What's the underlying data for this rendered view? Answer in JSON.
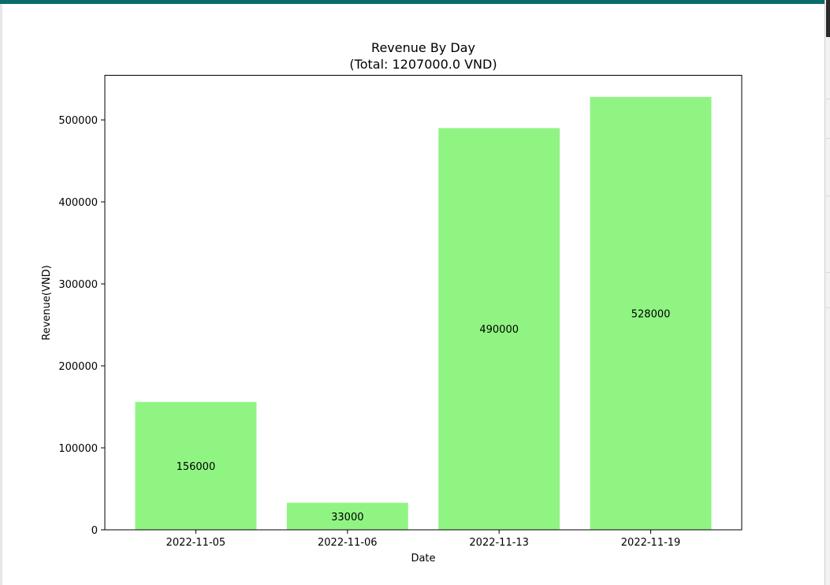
{
  "colors": {
    "accent": "#0b6b6b",
    "bar": "#90f483",
    "axis": "#000000"
  },
  "chart_data": {
    "type": "bar",
    "title": "Revenue By Day",
    "subtitle": "(Total: 1207000.0 VND)",
    "xlabel": "Date",
    "ylabel": "Revenue(VND)",
    "categories": [
      "2022-11-05",
      "2022-11-06",
      "2022-11-13",
      "2022-11-19"
    ],
    "values": [
      156000,
      33000,
      490000,
      528000
    ],
    "data_labels": [
      "156000",
      "33000",
      "490000",
      "528000"
    ],
    "ylim": [
      0,
      554400
    ],
    "yticks": [
      0,
      100000,
      200000,
      300000,
      400000,
      500000
    ],
    "ytick_labels": [
      "0",
      "100000",
      "200000",
      "300000",
      "400000",
      "500000"
    ],
    "grid": false,
    "legend": "none"
  }
}
